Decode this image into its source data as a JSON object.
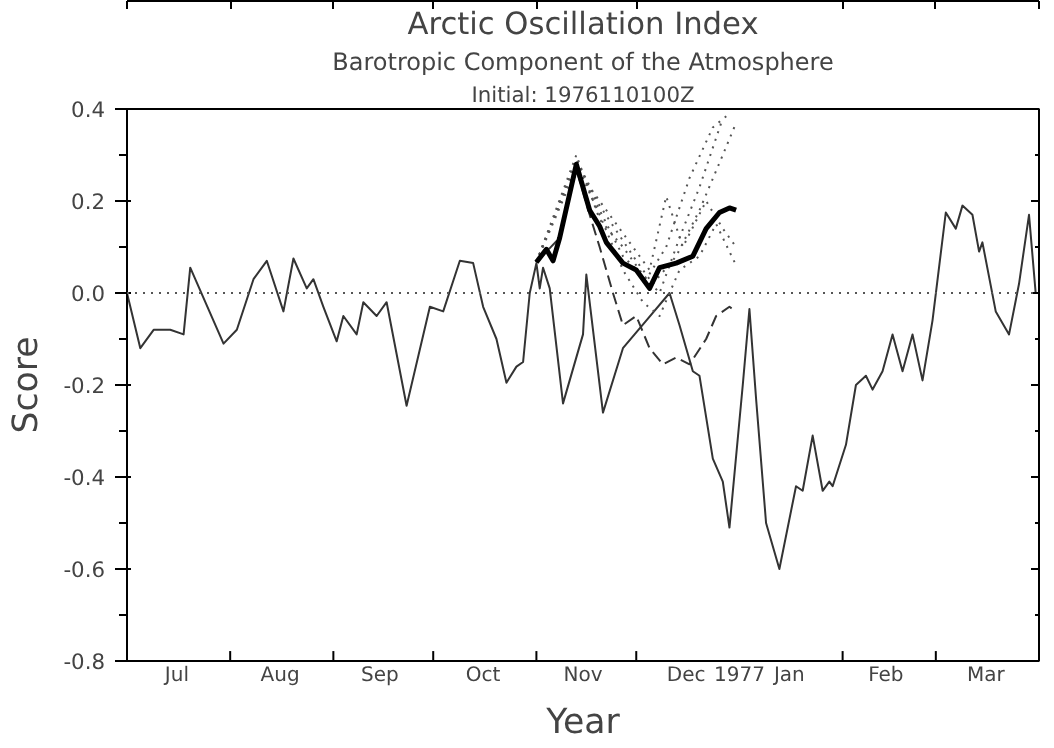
{
  "chart_data": {
    "type": "line",
    "title": "Arctic Oscillation Index",
    "subtitle": "Barotropic Component of the Atmosphere",
    "annotations": [
      "Initial: 1976110100Z"
    ],
    "xlabel": "Year",
    "ylabel": "Score",
    "xlim": [
      "1976-07-01",
      "1977-04-01"
    ],
    "ylim": [
      -0.8,
      0.4
    ],
    "xticks": [
      {
        "value": "1976-07-01",
        "label": null
      },
      {
        "value": "1976-08-01",
        "label": null
      },
      {
        "value": "1976-09-01",
        "label": null
      },
      {
        "value": "1976-10-01",
        "label": null
      },
      {
        "value": "1976-11-01",
        "label": null
      },
      {
        "value": "1976-12-01",
        "label": null
      },
      {
        "value": "1977-01-01",
        "label": "1977"
      },
      {
        "value": "1977-02-01",
        "label": null
      },
      {
        "value": "1977-03-01",
        "label": null
      },
      {
        "value": "1977-04-01",
        "label": null
      },
      {
        "value": "1976-07-16",
        "label": "Jul"
      },
      {
        "value": "1976-08-16",
        "label": "Aug"
      },
      {
        "value": "1976-09-15",
        "label": "Sep"
      },
      {
        "value": "1976-10-16",
        "label": "Oct"
      },
      {
        "value": "1976-11-15",
        "label": "Nov"
      },
      {
        "value": "1976-12-16",
        "label": "Dec"
      },
      {
        "value": "1977-01-16",
        "label": "Jan"
      },
      {
        "value": "1977-02-14",
        "label": "Feb"
      },
      {
        "value": "1977-03-16",
        "label": "Mar"
      }
    ],
    "yticks": [
      -0.8,
      -0.6,
      -0.4,
      -0.2,
      {
        "value": 0,
        "label": "0.0"
      },
      0.2,
      0.4
    ],
    "grid": false,
    "ref_lines": [
      {
        "axis": "y",
        "value": 0,
        "label": null,
        "color": "#555555",
        "line_style": "dotted"
      }
    ],
    "series": [
      {
        "color": "#333333",
        "line_style": "solid",
        "x": [
          "1976-07-01",
          "1976-07-05",
          "1976-07-09",
          "1976-07-14",
          "1976-07-18",
          "1976-07-20",
          "1976-07-30",
          "1976-08-03",
          "1976-08-08",
          "1976-08-12",
          "1976-08-17",
          "1976-08-20",
          "1976-08-24",
          "1976-08-26",
          "1976-08-29",
          "1976-09-02",
          "1976-09-04",
          "1976-09-08",
          "1976-09-10",
          "1976-09-14",
          "1976-09-17",
          "1976-09-23",
          "1976-09-30",
          "1976-10-04",
          "1976-10-09",
          "1976-10-13",
          "1976-10-16",
          "1976-10-20",
          "1976-10-23",
          "1976-10-26",
          "1976-10-28",
          "1976-10-30",
          "1976-11-01",
          "1976-11-02",
          "1976-11-03",
          "1976-11-05",
          "1976-11-09",
          "1976-11-15",
          "1976-11-16",
          "1976-11-21",
          "1976-11-27",
          "1976-12-04",
          "1976-12-11",
          "1976-12-14",
          "1976-12-18",
          "1976-12-20",
          "1976-12-24",
          "1976-12-27",
          "1976-12-29",
          "1977-01-02",
          "1977-01-04",
          "1977-01-06",
          "1977-01-09",
          "1977-01-13",
          "1977-01-18",
          "1977-01-20",
          "1977-01-23",
          "1977-01-26",
          "1977-01-28",
          "1977-01-29",
          "1977-02-02",
          "1977-02-05",
          "1977-02-08",
          "1977-02-10",
          "1977-02-13",
          "1977-02-16",
          "1977-02-19",
          "1977-02-22",
          "1977-02-25",
          "1977-02-28",
          "1977-03-04",
          "1977-03-07",
          "1977-03-09",
          "1977-03-12",
          "1977-03-14",
          "1977-03-15",
          "1977-03-19",
          "1977-03-23",
          "1977-03-26",
          "1977-03-29",
          "1977-03-31"
        ],
        "values": [
          0.0,
          -0.12,
          -0.08,
          -0.08,
          -0.09,
          0.055,
          -0.11,
          -0.08,
          0.03,
          0.07,
          -0.04,
          0.075,
          0.01,
          0.03,
          -0.03,
          -0.105,
          -0.05,
          -0.09,
          -0.02,
          -0.05,
          -0.02,
          -0.245,
          -0.03,
          -0.04,
          0.07,
          0.065,
          -0.03,
          -0.1,
          -0.195,
          -0.16,
          -0.15,
          0.0,
          0.065,
          0.01,
          0.055,
          0.01,
          -0.24,
          -0.09,
          0.04,
          -0.26,
          -0.12,
          -0.06,
          0.0,
          -0.07,
          -0.17,
          -0.18,
          -0.36,
          -0.41,
          -0.51,
          -0.2,
          -0.035,
          -0.23,
          -0.5,
          -0.6,
          -0.42,
          -0.43,
          -0.31,
          -0.43,
          -0.41,
          -0.42,
          -0.33,
          -0.2,
          -0.18,
          -0.21,
          -0.17,
          -0.09,
          -0.17,
          -0.09,
          -0.19,
          -0.06,
          0.175,
          0.14,
          0.19,
          0.17,
          0.09,
          0.11,
          -0.04,
          -0.09,
          0.02,
          0.17,
          0.0
        ]
      },
      {
        "color": "#555555",
        "line_style": "dotted",
        "x": [
          "1976-11-01",
          "1976-11-13",
          "1976-11-20",
          "1976-11-27",
          "1976-12-04",
          "1976-12-10",
          "1976-12-17",
          "1976-12-24",
          "1976-12-29"
        ],
        "values": [
          0.067,
          0.29,
          0.18,
          0.08,
          0.03,
          0.1,
          0.25,
          0.36,
          0.39
        ]
      },
      {
        "color": "#555555",
        "line_style": "dotted",
        "x": [
          "1976-11-01",
          "1976-11-13",
          "1976-11-20",
          "1976-11-27",
          "1976-12-03",
          "1976-12-08",
          "1976-12-14",
          "1976-12-20",
          "1976-12-27"
        ],
        "values": [
          0.067,
          0.3,
          0.16,
          0.1,
          0.04,
          0.0,
          0.12,
          0.23,
          0.38
        ]
      },
      {
        "color": "#555555",
        "line_style": "dotted",
        "x": [
          "1976-11-01",
          "1976-11-13",
          "1976-11-20",
          "1976-11-27",
          "1976-12-05",
          "1976-12-10",
          "1976-12-15",
          "1976-12-22",
          "1976-12-27",
          "1976-12-31"
        ],
        "values": [
          0.067,
          0.27,
          0.2,
          0.13,
          0.05,
          0.21,
          0.1,
          0.2,
          0.14,
          0.1
        ]
      },
      {
        "color": "#555555",
        "line_style": "dotted",
        "x": [
          "1976-11-01",
          "1976-11-13",
          "1976-11-20",
          "1976-11-27",
          "1976-12-03",
          "1976-12-08",
          "1976-12-14",
          "1976-12-20",
          "1976-12-25",
          "1976-12-31"
        ],
        "values": [
          0.067,
          0.28,
          0.17,
          0.05,
          -0.02,
          -0.05,
          0.05,
          0.08,
          0.15,
          0.06
        ]
      },
      {
        "color": "#555555",
        "line_style": "dotted",
        "x": [
          "1976-11-01",
          "1976-11-13",
          "1976-11-20",
          "1976-12-01",
          "1976-12-06",
          "1976-12-13",
          "1976-12-20",
          "1976-12-27",
          "1976-12-31"
        ],
        "values": [
          0.067,
          0.29,
          0.19,
          0.07,
          0.02,
          0.08,
          0.18,
          0.3,
          0.37
        ]
      },
      {
        "color": "#333333",
        "line_style": "dashed",
        "x": [
          "1976-11-01",
          "1976-11-08",
          "1976-11-13",
          "1976-11-17",
          "1976-11-20",
          "1976-11-24",
          "1976-11-27",
          "1976-12-01",
          "1976-12-05",
          "1976-12-09",
          "1976-12-13",
          "1976-12-17",
          "1976-12-22",
          "1976-12-25",
          "1976-12-29",
          "1976-12-31"
        ],
        "values": [
          0.067,
          0.12,
          0.27,
          0.17,
          0.1,
          0.0,
          -0.07,
          -0.05,
          -0.12,
          -0.155,
          -0.14,
          -0.155,
          -0.1,
          -0.05,
          -0.03,
          -0.04
        ]
      },
      {
        "color": "#000000",
        "line_style": "solid",
        "x": [
          "1976-11-01",
          "1976-11-04",
          "1976-11-06",
          "1976-11-08",
          "1976-11-13",
          "1976-11-17",
          "1976-11-20",
          "1976-11-22",
          "1976-11-27",
          "1976-12-01",
          "1976-12-05",
          "1976-12-08",
          "1976-12-13",
          "1976-12-18",
          "1976-12-22",
          "1976-12-26",
          "1976-12-29",
          "1976-12-31"
        ],
        "values": [
          0.067,
          0.095,
          0.07,
          0.12,
          0.28,
          0.18,
          0.145,
          0.11,
          0.065,
          0.05,
          0.01,
          0.055,
          0.065,
          0.08,
          0.14,
          0.175,
          0.185,
          0.18
        ]
      }
    ]
  }
}
